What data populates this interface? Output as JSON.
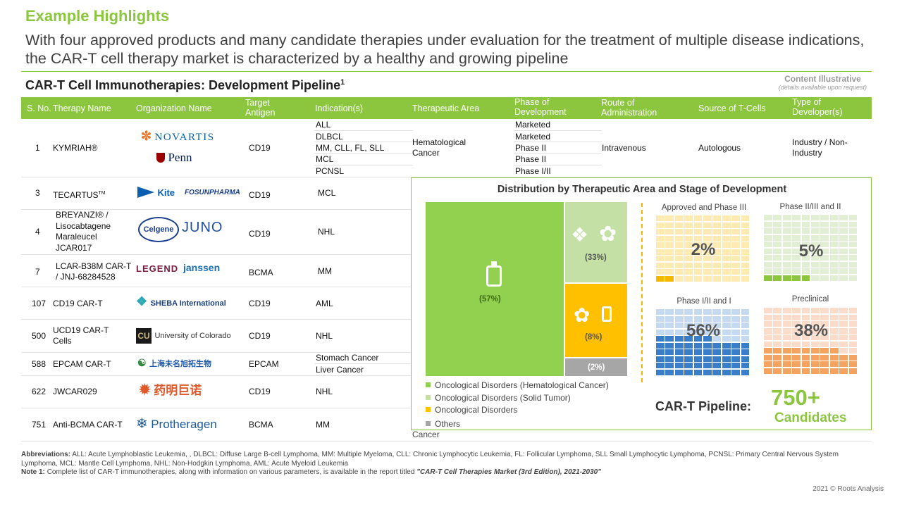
{
  "header": {
    "title": "Example Highlights",
    "subtitle": "With four approved products and many candidate therapies under evaluation for the treatment of multiple disease indications, the CAR-T cell therapy market is characterized by a healthy and growing pipeline"
  },
  "table_title": "CAR-T Cell Immunotherapies: Development Pipeline",
  "table_title_sup": "1",
  "illustrative": {
    "line1": "Content Illustrative",
    "line2": "(details available upon request)"
  },
  "columns": [
    "S. No.",
    "Therapy Name",
    "Organization Name",
    "Target Antigen",
    "Indication(s)",
    "Therapeutic Area",
    "Phase of Development",
    "Route of Administration",
    "Source of T-Cells",
    "Type of Developer(s)"
  ],
  "rows": [
    {
      "sno": "1",
      "name": "KYMRIAH®",
      "orgs": [
        "NOVARTIS",
        "Penn"
      ],
      "antigen": "CD19",
      "indications": [
        "ALL",
        "DLBCL",
        "MM, CLL, FL, SLL",
        "MCL",
        "PCNSL"
      ],
      "area": "Hematological Cancer",
      "phases": [
        "Marketed",
        "Marketed",
        "Phase II",
        "Phase II",
        "Phase I/II"
      ],
      "route": "Intravenous",
      "source": "Autologous",
      "developer": "Industry / Non-Industry"
    },
    {
      "sno": "3",
      "name": "TECARTUS",
      "name_tm": "TM",
      "orgs": [
        "Kite",
        "FOSUNPHARMA"
      ],
      "antigen": "CD19",
      "indication": "MCL"
    },
    {
      "sno": "4",
      "name": "BREYANZI® / Lisocabtagene Maraleucel JCAR017",
      "orgs": [
        "Celgene",
        "JUNO"
      ],
      "antigen": "CD19",
      "indication": "NHL"
    },
    {
      "sno": "7",
      "name": "LCAR-B38M CAR-T / JNJ-68284528",
      "orgs": [
        "LEGEND",
        "janssen"
      ],
      "antigen": "BCMA",
      "indication": "MM"
    },
    {
      "sno": "107",
      "name": "CD19 CAR-T",
      "orgs": [
        "SHEBA International"
      ],
      "antigen": "CD19",
      "indication": "AML"
    },
    {
      "sno": "500",
      "name": "UCD19 CAR-T Cells",
      "orgs": [
        "University of Colorado"
      ],
      "antigen": "CD19",
      "indication": "NHL"
    },
    {
      "sno": "588",
      "name": "EPCAM CAR-T",
      "orgs": [
        "上海未名旭拓生物"
      ],
      "antigen": "EPCAM",
      "indications": [
        "Stomach Cancer",
        "Liver Cancer"
      ]
    },
    {
      "sno": "622",
      "name": "JWCAR029",
      "orgs": [
        "药明巨诺"
      ],
      "antigen": "CD19",
      "indication": "NHL"
    },
    {
      "sno": "751",
      "name": "Anti-BCMA CAR-T",
      "orgs": [
        "Protheragen"
      ],
      "antigen": "BCMA",
      "indication": "MM"
    }
  ],
  "panel": {
    "title": "Distribution by Therapeutic Area and Stage of Development",
    "treemap": [
      {
        "label": "(57%)",
        "value": 57,
        "color": "#92d050"
      },
      {
        "label": "(33%)",
        "value": 33,
        "color": "#c5e0a5"
      },
      {
        "label": "(8%)",
        "value": 8,
        "color": "#ffc000"
      },
      {
        "label": "(2%)",
        "value": 2,
        "color": "#a6a6a6"
      }
    ],
    "legend": [
      {
        "label": "Oncological Disorders (Hematological Cancer)",
        "color": "#92d050"
      },
      {
        "label": "Oncological Disorders (Solid Tumor)",
        "color": "#c5e0a5"
      },
      {
        "label": "Oncological Disorders",
        "color": "#ffc000"
      },
      {
        "label": "Others",
        "color": "#a6a6a6"
      }
    ],
    "overflow_text": "Cancer",
    "waffles": [
      {
        "title": "Approved and Phase III",
        "pct_label": "2%",
        "pct": 2,
        "light": "#fdebb3",
        "dark": "#f5b800"
      },
      {
        "title": "Phase II/III and II",
        "pct_label": "5%",
        "pct": 5,
        "light": "#e2efd5",
        "dark": "#8cc63f"
      },
      {
        "title": "Phase I/II and I",
        "pct_label": "56%",
        "pct": 56,
        "light": "#c5d9f1",
        "dark": "#3a7dc9"
      },
      {
        "title": "Preclinical",
        "pct_label": "38%",
        "pct": 38,
        "light": "#fbdccb",
        "dark": "#f4a460"
      }
    ],
    "pipeline_label": "CAR-T Pipeline:",
    "pipeline_num": "750+",
    "pipeline_sub": "Candidates"
  },
  "abbreviations_label": "Abbreviations:",
  "abbreviations": "ALL: Acute Lymphoblastic Leukemia, , DLBCL: Diffuse Large B-cell Lymphoma, MM: Multiple Myeloma, CLL: Chronic Lymphocytic Leukemia, FL: Follicular Lymphoma, SLL Small Lymphocytic Lymphoma, PCNSL: Primary Central Nervous System Lymphoma, MCL: Mantle Cell Lymphoma, NHL: Non-Hodgkin Lymphoma, AML: Acute Myeloid Leukemia",
  "note_label": "Note 1:",
  "note_text": "Complete list of CAR-T immunotherapies, along with information on various parameters, is available in the report titled",
  "note_report": "\"CAR-T Cell Therapies Market (3rd Edition), 2021-2030\"",
  "copyright": "2021 © Roots Analysis"
}
